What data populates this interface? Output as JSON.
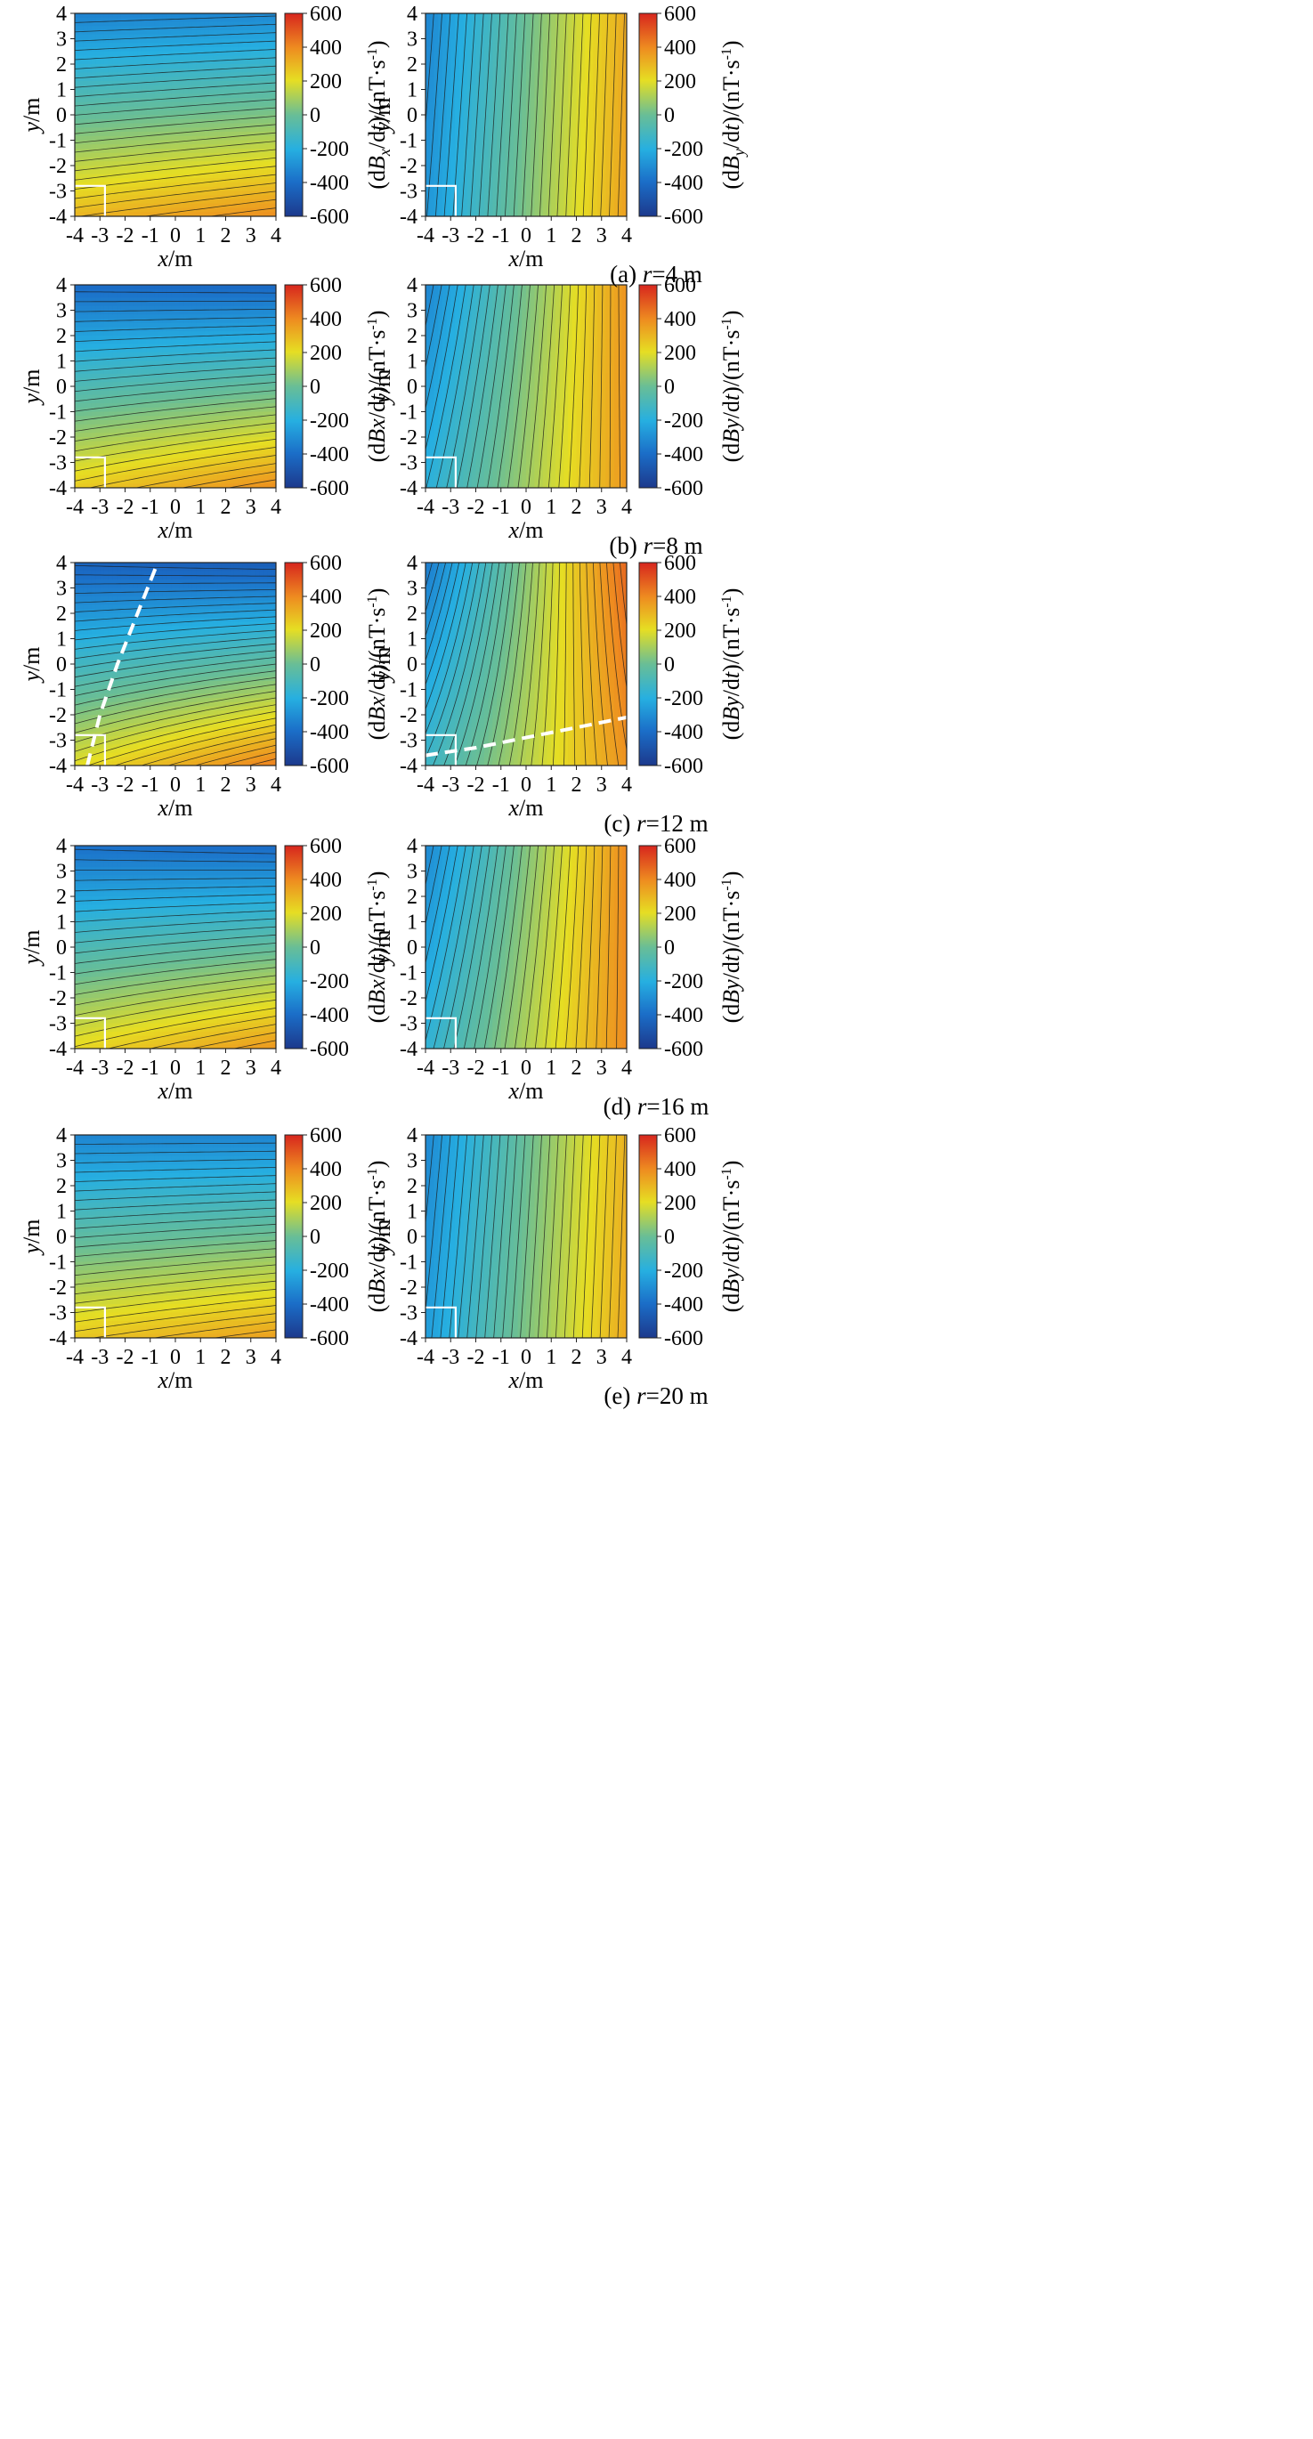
{
  "figure": {
    "rows": [
      {
        "caption_pre": "(a) ",
        "caption_var": "r",
        "caption_post": "=4 m"
      },
      {
        "caption_pre": "(b) ",
        "caption_var": "r",
        "caption_post": "=8 m"
      },
      {
        "caption_pre": "(c) ",
        "caption_var": "r",
        "caption_post": "=12 m"
      },
      {
        "caption_pre": "(d) ",
        "caption_var": "r",
        "caption_post": "=16 m"
      },
      {
        "caption_pre": "(e) ",
        "caption_var": "r",
        "caption_post": "=20 m"
      }
    ]
  },
  "chart_data": [
    {
      "type": "heatmap",
      "panel": "a-left",
      "component": "Bx",
      "r_m": 4,
      "caption": "(a) r=4 m",
      "xlabel": "x/m",
      "ylabel": "y/m",
      "xlim": [
        -4,
        4
      ],
      "ylim": [
        -4,
        4
      ],
      "xticks": [
        "-4",
        "-3",
        "-2",
        "-1",
        "0",
        "1",
        "2",
        "3",
        "4"
      ],
      "yticks": [
        "-4",
        "-3",
        "-2",
        "-1",
        "0",
        "1",
        "2",
        "3",
        "4"
      ],
      "colorbar": {
        "label": "(dB_x/dt)/(nT·s⁻¹)",
        "label_main": "(dB",
        "label_sub": "x",
        "label_tail": "/dt)/(nT·s",
        "label_sup": "-1",
        "label_end": ")",
        "range": [
          -600,
          600
        ],
        "ticks": [
          "600",
          "400",
          "200",
          "0",
          "-200",
          "-400",
          "-600"
        ]
      },
      "field_values": {
        "bottom_left": 300,
        "bottom_right": 390,
        "top_left": -340,
        "top_right": -320
      },
      "contour_lines": 25,
      "colormap": "parula-like blue-cyan-green-yellow-red",
      "marker_box": "white square at x∈[-4,-2.8], y∈[-4,-2.8]"
    },
    {
      "type": "heatmap",
      "panel": "a-right",
      "component": "By",
      "r_m": 4,
      "caption": "(a) r=4 m",
      "xlabel": "x/m",
      "ylabel": "y/m",
      "xlim": [
        -4,
        4
      ],
      "ylim": [
        -4,
        4
      ],
      "xticks": [
        "-4",
        "-3",
        "-2",
        "-1",
        "0",
        "1",
        "2",
        "3",
        "4"
      ],
      "yticks": [
        "-4",
        "-3",
        "-2",
        "-1",
        "0",
        "1",
        "2",
        "3",
        "4"
      ],
      "colorbar": {
        "label": "(dB_y/dt)/(nT·s⁻¹)",
        "label_main": "(dB",
        "label_sub": "y",
        "label_tail": "/dt)/(nT·s",
        "label_sup": "-1",
        "label_end": ")",
        "range": [
          -600,
          600
        ],
        "ticks": [
          "600",
          "400",
          "200",
          "0",
          "-200",
          "-400",
          "-600"
        ]
      },
      "field_values": {
        "bottom_left": -280,
        "bottom_right": 350,
        "top_left": -330,
        "top_right": 330
      },
      "contour_lines": 25,
      "colormap": "parula-like blue-cyan-green-yellow-red",
      "marker_box": "white square at x∈[-4,-2.8], y∈[-4,-2.8]"
    },
    {
      "type": "heatmap",
      "panel": "b-left",
      "component": "Bx",
      "r_m": 8,
      "caption": "(b) r=8 m",
      "xlabel": "x/m",
      "ylabel": "y/m",
      "xlim": [
        -4,
        4
      ],
      "ylim": [
        -4,
        4
      ],
      "xticks": [
        "-4",
        "-3",
        "-2",
        "-1",
        "0",
        "1",
        "2",
        "3",
        "4"
      ],
      "yticks": [
        "-4",
        "-3",
        "-2",
        "-1",
        "0",
        "1",
        "2",
        "3",
        "4"
      ],
      "colorbar": {
        "label": "(dBx/dt)/(nT·s⁻¹)",
        "label_main": "(dBx",
        "label_sub": "",
        "label_tail": "/dt)/(nT·s",
        "label_sup": "-1",
        "label_end": ")",
        "range": [
          -600,
          600
        ],
        "ticks": [
          "600",
          "400",
          "200",
          "0",
          "-200",
          "-400",
          "-600"
        ]
      },
      "field_values": {
        "bottom_left": 250,
        "bottom_right": 390,
        "top_left": -410,
        "top_right": -420
      },
      "contour_lines": 25,
      "colormap": "parula-like blue-cyan-green-yellow-red",
      "marker_box": "white square at x∈[-4,-2.8], y∈[-4,-2.8]"
    },
    {
      "type": "heatmap",
      "panel": "b-right",
      "component": "By",
      "r_m": 8,
      "caption": "(b) r=8 m",
      "xlabel": "x/m",
      "ylabel": "y/m",
      "xlim": [
        -4,
        4
      ],
      "ylim": [
        -4,
        4
      ],
      "xticks": [
        "-4",
        "-3",
        "-2",
        "-1",
        "0",
        "1",
        "2",
        "3",
        "4"
      ],
      "yticks": [
        "-4",
        "-3",
        "-2",
        "-1",
        "0",
        "1",
        "2",
        "3",
        "4"
      ],
      "colorbar": {
        "label": "(dBy/dt)/(nT·s⁻¹)",
        "label_main": "(dBy",
        "label_sub": "",
        "label_tail": "/dt)/(nT·s",
        "label_sup": "-1",
        "label_end": ")",
        "range": [
          -600,
          600
        ],
        "ticks": [
          "600",
          "400",
          "200",
          "0",
          "-200",
          "-400",
          "-600"
        ]
      },
      "field_values": {
        "bottom_left": -190,
        "bottom_right": 370,
        "top_left": -330,
        "top_right": 380
      },
      "contour_lines": 25,
      "colormap": "parula-like blue-cyan-green-yellow-red",
      "marker_box": "white square at x∈[-4,-2.8], y∈[-4,-2.8]"
    },
    {
      "type": "heatmap",
      "panel": "c-left",
      "component": "Bx",
      "r_m": 12,
      "caption": "(c) r=12 m",
      "xlabel": "x/m",
      "ylabel": "y/m",
      "xlim": [
        -4,
        4
      ],
      "ylim": [
        -4,
        4
      ],
      "xticks": [
        "-4",
        "-3",
        "-2",
        "-1",
        "0",
        "1",
        "2",
        "3",
        "4"
      ],
      "yticks": [
        "-4",
        "-3",
        "-2",
        "-1",
        "0",
        "1",
        "2",
        "3",
        "4"
      ],
      "colorbar": {
        "label": "(dBx/dt)/(nT·s⁻¹)",
        "label_main": "(dBx",
        "label_sub": "",
        "label_tail": "/dt)/(nT·s",
        "label_sup": "-1",
        "label_end": ")",
        "range": [
          -600,
          600
        ],
        "ticks": [
          "600",
          "400",
          "200",
          "0",
          "-200",
          "-400",
          "-600"
        ]
      },
      "field_values": {
        "bottom_left": 200,
        "bottom_right": 420,
        "top_left": -440,
        "top_right": -460
      },
      "contour_lines": 30,
      "colormap": "parula-like blue-cyan-green-yellow-red",
      "marker_box": "white square at x∈[-4,-2.8], y∈[-4,-2.8]",
      "dashed_line": [
        [
          -3.5,
          -4
        ],
        [
          -3.0,
          -2
        ],
        [
          -2.3,
          0
        ],
        [
          -1.5,
          2
        ],
        [
          -0.7,
          4
        ]
      ]
    },
    {
      "type": "heatmap",
      "panel": "c-right",
      "component": "By",
      "r_m": 12,
      "caption": "(c) r=12 m",
      "xlabel": "x/m",
      "ylabel": "y/m",
      "xlim": [
        -4,
        4
      ],
      "ylim": [
        -4,
        4
      ],
      "xticks": [
        "-4",
        "-3",
        "-2",
        "-1",
        "0",
        "1",
        "2",
        "3",
        "4"
      ],
      "yticks": [
        "-4",
        "-3",
        "-2",
        "-1",
        "0",
        "1",
        "2",
        "3",
        "4"
      ],
      "colorbar": {
        "label": "(dBy/dt)/(nT·s⁻¹)",
        "label_main": "(dBy",
        "label_sub": "",
        "label_tail": "/dt)/(nT·s",
        "label_sup": "-1",
        "label_end": ")",
        "range": [
          -600,
          600
        ],
        "ticks": [
          "600",
          "400",
          "200",
          "0",
          "-200",
          "-400",
          "-600"
        ]
      },
      "field_values": {
        "bottom_left": -130,
        "bottom_right": 380,
        "top_left": -360,
        "top_right": 470
      },
      "contour_lines": 30,
      "colormap": "parula-like blue-cyan-green-yellow-red",
      "marker_box": "white square at x∈[-4,-2.8], y∈[-4,-2.8]",
      "dashed_line": [
        [
          -4,
          -3.6
        ],
        [
          -2,
          -3.3
        ],
        [
          0,
          -2.9
        ],
        [
          2,
          -2.5
        ],
        [
          4,
          -2.1
        ]
      ]
    },
    {
      "type": "heatmap",
      "panel": "d-left",
      "component": "Bx",
      "r_m": 16,
      "caption": "(d) r=16 m",
      "xlabel": "x/m",
      "ylabel": "y/m",
      "xlim": [
        -4,
        4
      ],
      "ylim": [
        -4,
        4
      ],
      "xticks": [
        "-4",
        "-3",
        "-2",
        "-1",
        "0",
        "1",
        "2",
        "3",
        "4"
      ],
      "yticks": [
        "-4",
        "-3",
        "-2",
        "-1",
        "0",
        "1",
        "2",
        "3",
        "4"
      ],
      "colorbar": {
        "label": "(dBx/dt)/(nT·s⁻¹)",
        "label_main": "(dBx",
        "label_sub": "",
        "label_tail": "/dt)/(nT·s",
        "label_sup": "-1",
        "label_end": ")",
        "range": [
          -600,
          600
        ],
        "ticks": [
          "600",
          "400",
          "200",
          "0",
          "-200",
          "-400",
          "-600"
        ]
      },
      "field_values": {
        "bottom_left": 220,
        "bottom_right": 370,
        "top_left": -390,
        "top_right": -410
      },
      "contour_lines": 25,
      "colormap": "parula-like blue-cyan-green-yellow-red",
      "marker_box": "white square at x∈[-4,-2.8], y∈[-4,-2.8]"
    },
    {
      "type": "heatmap",
      "panel": "d-right",
      "component": "By",
      "r_m": 16,
      "caption": "(d) r=16 m",
      "xlabel": "x/m",
      "ylabel": "y/m",
      "xlim": [
        -4,
        4
      ],
      "ylim": [
        -4,
        4
      ],
      "xticks": [
        "-4",
        "-3",
        "-2",
        "-1",
        "0",
        "1",
        "2",
        "3",
        "4"
      ],
      "yticks": [
        "-4",
        "-3",
        "-2",
        "-1",
        "0",
        "1",
        "2",
        "3",
        "4"
      ],
      "colorbar": {
        "label": "(dBy/dt)/(nT·s⁻¹)",
        "label_main": "(dBy",
        "label_sub": "",
        "label_tail": "/dt)/(nT·s",
        "label_sup": "-1",
        "label_end": ")",
        "range": [
          -600,
          600
        ],
        "ticks": [
          "600",
          "400",
          "200",
          "0",
          "-200",
          "-400",
          "-600"
        ]
      },
      "field_values": {
        "bottom_left": -170,
        "bottom_right": 400,
        "top_left": -320,
        "top_right": 400
      },
      "contour_lines": 25,
      "colormap": "parula-like blue-cyan-green-yellow-red",
      "marker_box": "white square at x∈[-4,-2.8], y∈[-4,-2.8]"
    },
    {
      "type": "heatmap",
      "panel": "e-left",
      "component": "Bx",
      "r_m": 20,
      "caption": "(e) r=20 m",
      "xlabel": "x/m",
      "ylabel": "y/m",
      "xlim": [
        -4,
        4
      ],
      "ylim": [
        -4,
        4
      ],
      "xticks": [
        "-4",
        "-3",
        "-2",
        "-1",
        "0",
        "1",
        "2",
        "3",
        "4"
      ],
      "yticks": [
        "-4",
        "-3",
        "-2",
        "-1",
        "0",
        "1",
        "2",
        "3",
        "4"
      ],
      "colorbar": {
        "label": "(dBx/dt)/(nT·s⁻¹)",
        "label_main": "(dBx",
        "label_sub": "",
        "label_tail": "/dt)/(nT·s",
        "label_sup": "-1",
        "label_end": ")",
        "range": [
          -600,
          600
        ],
        "ticks": [
          "600",
          "400",
          "200",
          "0",
          "-200",
          "-400",
          "-600"
        ]
      },
      "field_values": {
        "bottom_left": 260,
        "bottom_right": 350,
        "top_left": -330,
        "top_right": -330
      },
      "contour_lines": 25,
      "colormap": "parula-like blue-cyan-green-yellow-red",
      "marker_box": "white square at x∈[-4,-2.8], y∈[-4,-2.8]"
    },
    {
      "type": "heatmap",
      "panel": "e-right",
      "component": "By",
      "r_m": 20,
      "caption": "(e) r=20 m",
      "xlabel": "x/m",
      "ylabel": "y/m",
      "xlim": [
        -4,
        4
      ],
      "ylim": [
        -4,
        4
      ],
      "xticks": [
        "-4",
        "-3",
        "-2",
        "-1",
        "0",
        "1",
        "2",
        "3",
        "4"
      ],
      "yticks": [
        "-4",
        "-3",
        "-2",
        "-1",
        "0",
        "1",
        "2",
        "3",
        "4"
      ],
      "colorbar": {
        "label": "(dBy/dt)/(nT·s⁻¹)",
        "label_main": "(dBy",
        "label_sub": "",
        "label_tail": "/dt)/(nT·s",
        "label_sup": "-1",
        "label_end": ")",
        "range": [
          -600,
          600
        ],
        "ticks": [
          "600",
          "400",
          "200",
          "0",
          "-200",
          "-400",
          "-600"
        ]
      },
      "field_values": {
        "bottom_left": -260,
        "bottom_right": 330,
        "top_left": -320,
        "top_right": 310
      },
      "contour_lines": 25,
      "colormap": "parula-like blue-cyan-green-yellow-red",
      "marker_box": "white square at x∈[-4,-2.8], y∈[-4,-2.8]"
    }
  ]
}
